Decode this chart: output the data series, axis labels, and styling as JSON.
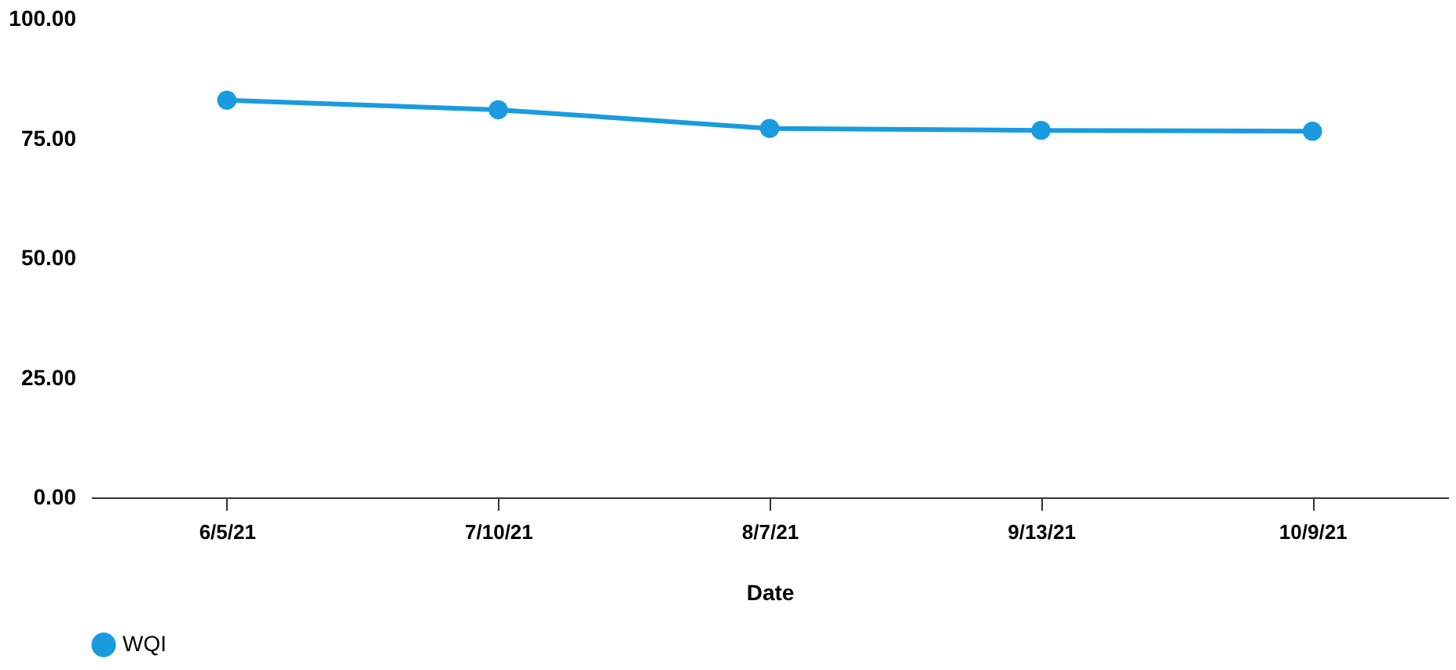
{
  "chart_data": {
    "type": "line",
    "xlabel": "Date",
    "categories": [
      "6/5/21",
      "7/10/21",
      "8/7/21",
      "9/13/21",
      "10/9/21"
    ],
    "series": [
      {
        "name": "WQI",
        "color": "#1a9be0",
        "values": [
          83.0,
          81.0,
          77.1,
          76.7,
          76.5
        ]
      }
    ],
    "ylim": [
      0,
      100
    ],
    "yticks": [
      {
        "value": 0,
        "label": "0.00"
      },
      {
        "value": 25,
        "label": "25.00"
      },
      {
        "value": 50,
        "label": "50.00"
      },
      {
        "value": 75,
        "label": "75.00"
      },
      {
        "value": 100,
        "label": "100.00"
      }
    ],
    "grid": false,
    "legend": "bottom",
    "marker": "circle",
    "line_style": "solid"
  }
}
